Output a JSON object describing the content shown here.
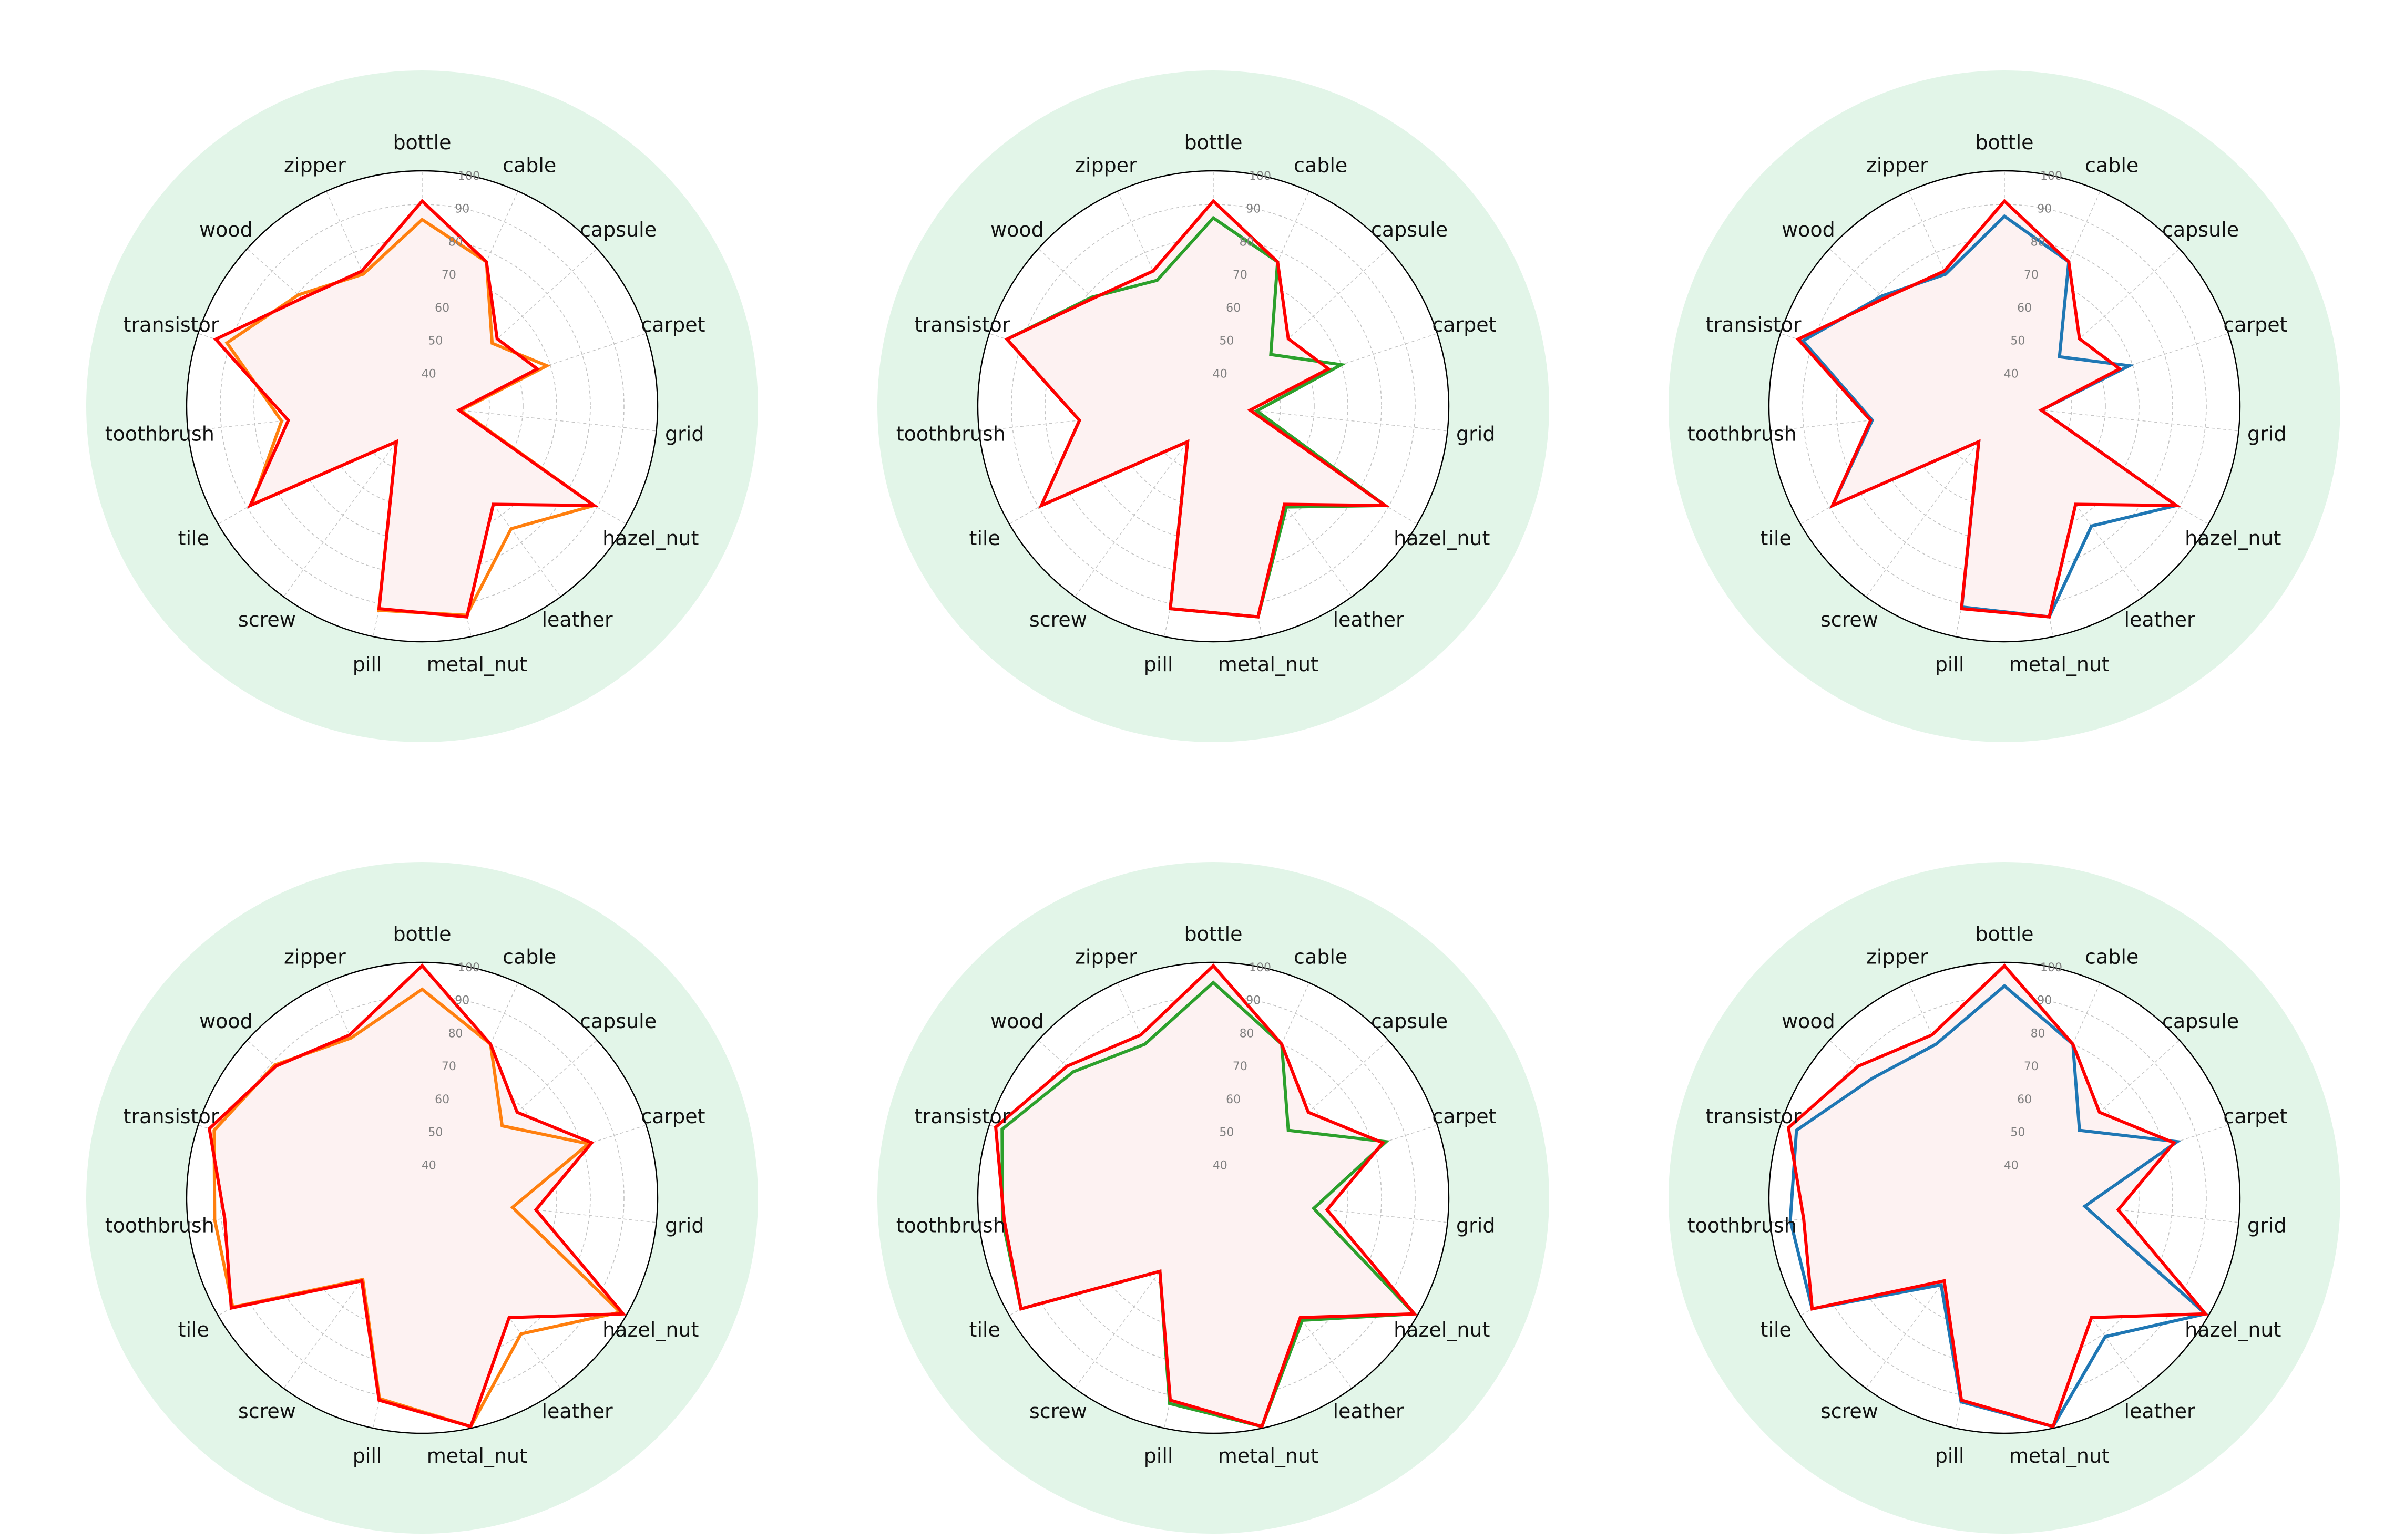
{
  "colors": {
    "background_disc": "#e2f5e8",
    "inner_fill": "#fdf2f2",
    "grid": "#c4c4c4",
    "spine": "#000000",
    "reference_series": "#d62728",
    "orange": "#ff7f0e",
    "green": "#2ca02c",
    "blue": "#1f77b4"
  },
  "chart_data": [
    {
      "type": "radar",
      "categories": [
        "bottle",
        "cable",
        "capsule",
        "carpet",
        "grid",
        "hazel_nut",
        "leather",
        "metal_nut",
        "pill",
        "screw",
        "tile",
        "toothbrush",
        "transistor",
        "wood",
        "zipper"
      ],
      "rlim": [
        30,
        100
      ],
      "rticks": [
        "40",
        "50",
        "60",
        "70",
        "80",
        "90",
        "100"
      ],
      "grid": true,
      "series": [
        {
          "color": "orange",
          "values": [
            85.5,
            77.0,
            58.0,
            69.0,
            41.5,
            89.0,
            75.0,
            93.5,
            92.0,
            43.0,
            88.5,
            72.0,
            91.0,
            79.5,
            73.0
          ]
        },
        {
          "color": "red",
          "values": [
            91.0,
            77.0,
            60.0,
            66.0,
            41.0,
            89.0,
            66.0,
            94.0,
            91.5,
            43.0,
            89.0,
            70.0,
            94.5,
            78.0,
            74.0
          ]
        }
      ]
    },
    {
      "type": "radar",
      "categories": [
        "bottle",
        "cable",
        "capsule",
        "carpet",
        "grid",
        "hazel_nut",
        "leather",
        "metal_nut",
        "pill",
        "screw",
        "tile",
        "toothbrush",
        "transistor",
        "wood",
        "zipper"
      ],
      "rlim": [
        30,
        100
      ],
      "rticks": [
        "40",
        "50",
        "60",
        "70",
        "80",
        "90",
        "100"
      ],
      "grid": true,
      "series": [
        {
          "color": "green",
          "values": [
            86.0,
            77.0,
            53.0,
            70.0,
            43.0,
            89.0,
            67.0,
            94.0,
            91.5,
            43.0,
            89.0,
            70.0,
            94.5,
            78.5,
            71.0
          ]
        },
        {
          "color": "red",
          "values": [
            91.0,
            77.0,
            60.0,
            66.0,
            41.0,
            89.0,
            66.0,
            94.0,
            91.5,
            43.0,
            89.0,
            70.0,
            94.5,
            78.0,
            74.0
          ]
        }
      ]
    },
    {
      "type": "radar",
      "categories": [
        "bottle",
        "cable",
        "capsule",
        "carpet",
        "grid",
        "hazel_nut",
        "leather",
        "metal_nut",
        "pill",
        "screw",
        "tile",
        "toothbrush",
        "transistor",
        "wood",
        "zipper"
      ],
      "rlim": [
        30,
        100
      ],
      "rticks": [
        "40",
        "50",
        "60",
        "70",
        "80",
        "90",
        "100"
      ],
      "grid": true,
      "series": [
        {
          "color": "blue",
          "values": [
            86.5,
            77.0,
            52.0,
            69.0,
            41.0,
            89.0,
            74.0,
            94.0,
            91.0,
            43.0,
            89.0,
            69.5,
            93.0,
            79.0,
            73.0
          ]
        },
        {
          "color": "red",
          "values": [
            91.0,
            77.0,
            60.0,
            66.0,
            41.0,
            89.0,
            66.0,
            94.0,
            91.5,
            43.0,
            89.0,
            70.0,
            94.5,
            78.0,
            74.0
          ]
        }
      ]
    },
    {
      "type": "radar",
      "categories": [
        "bottle",
        "cable",
        "capsule",
        "carpet",
        "grid",
        "hazel_nut",
        "leather",
        "metal_nut",
        "pill",
        "screw",
        "tile",
        "toothbrush",
        "transistor",
        "wood",
        "zipper"
      ],
      "rlim": [
        30,
        100
      ],
      "rticks": [
        "40",
        "50",
        "60",
        "70",
        "80",
        "90",
        "100"
      ],
      "grid": true,
      "series": [
        {
          "color": "orange",
          "values": [
            92.0,
            80.0,
            62.0,
            82.0,
            57.0,
            98.0,
            80.0,
            99.5,
            91.0,
            60.0,
            95.0,
            92.0,
            95.0,
            89.0,
            82.0
          ]
        },
        {
          "color": "red",
          "values": [
            99.0,
            80.0,
            68.0,
            83.0,
            64.0,
            99.0,
            74.0,
            99.5,
            91.5,
            60.5,
            95.5,
            89.0,
            96.5,
            88.5,
            83.0
          ]
        }
      ]
    },
    {
      "type": "radar",
      "categories": [
        "bottle",
        "cable",
        "capsule",
        "carpet",
        "grid",
        "hazel_nut",
        "leather",
        "metal_nut",
        "pill",
        "screw",
        "tile",
        "toothbrush",
        "transistor",
        "wood",
        "zipper"
      ],
      "rlim": [
        30,
        100
      ],
      "rticks": [
        "40",
        "50",
        "60",
        "70",
        "80",
        "90",
        "100"
      ],
      "grid": true,
      "series": [
        {
          "color": "green",
          "values": [
            94.0,
            80.0,
            60.0,
            84.0,
            60.0,
            99.0,
            75.0,
            99.5,
            92.5,
            57.0,
            96.0,
            93.0,
            96.0,
            86.0,
            80.0
          ]
        },
        {
          "color": "red",
          "values": [
            99.0,
            80.0,
            68.0,
            83.0,
            64.0,
            99.0,
            74.0,
            99.5,
            91.5,
            57.0,
            96.0,
            92.5,
            98.0,
            88.5,
            83.0
          ]
        }
      ]
    },
    {
      "type": "radar",
      "categories": [
        "bottle",
        "cable",
        "capsule",
        "carpet",
        "grid",
        "hazel_nut",
        "leather",
        "metal_nut",
        "pill",
        "screw",
        "tile",
        "toothbrush",
        "transistor",
        "wood",
        "zipper"
      ],
      "rlim": [
        30,
        100
      ],
      "rticks": [
        "40",
        "50",
        "60",
        "70",
        "80",
        "90",
        "100"
      ],
      "grid": true,
      "series": [
        {
          "color": "blue",
          "values": [
            93.0,
            80.0,
            60.0,
            84.0,
            54.0,
            99.0,
            81.0,
            99.5,
            92.0,
            62.0,
            96.0,
            94.0,
            95.0,
            83.0,
            80.0
          ]
        },
        {
          "color": "red",
          "values": [
            99.0,
            80.0,
            68.0,
            83.0,
            64.0,
            99.0,
            74.0,
            99.5,
            91.5,
            60.5,
            96.0,
            90.0,
            97.5,
            88.5,
            83.0
          ]
        }
      ]
    }
  ]
}
